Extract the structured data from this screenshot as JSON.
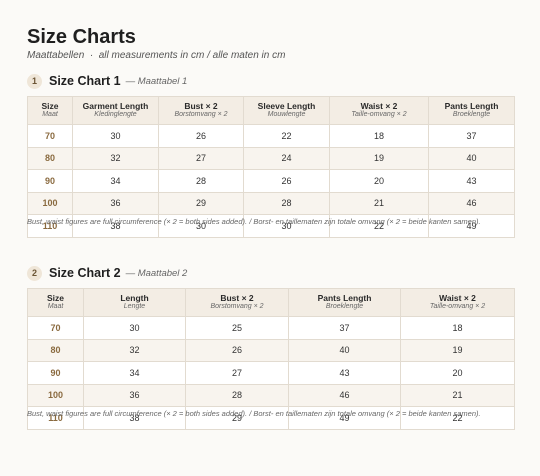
{
  "header": {
    "title": "Size Charts",
    "subtitle": "Maattabellen  ·  all measurements in cm / alle maten in cm"
  },
  "sections": [
    {
      "number": 1,
      "title": "Size Chart 1",
      "subtitle": "— Maattabel 1",
      "table": {
        "columns": [
          {
            "label": "Size",
            "sublabel": "Maat"
          },
          {
            "label": "Garment Length",
            "sublabel": "Kledinglengte"
          },
          {
            "label": "Bust × 2",
            "sublabel": "Borstomvang × 2"
          },
          {
            "label": "Sleeve Length",
            "sublabel": "Mouwlengte"
          },
          {
            "label": "Waist × 2",
            "sublabel": "Taille-omvang × 2"
          },
          {
            "label": "Pants Length",
            "sublabel": "Broeklengte"
          }
        ],
        "rows": [
          [
            70,
            30,
            26,
            22,
            18,
            37
          ],
          [
            80,
            32,
            27,
            24,
            19,
            40
          ],
          [
            90,
            34,
            28,
            26,
            20,
            43
          ],
          [
            100,
            36,
            29,
            28,
            21,
            46
          ],
          [
            110,
            38,
            30,
            30,
            22,
            49
          ]
        ]
      },
      "note": "Bust, waist figures are full circumference (× 2 = both sides added). / Borst- en taillematen zijn totale omvang (× 2 = beide kanten samen)."
    },
    {
      "number": 2,
      "title": "Size Chart 2",
      "subtitle": "— Maattabel 2",
      "table": {
        "columns": [
          {
            "label": "Size",
            "sublabel": "Maat"
          },
          {
            "label": "Length",
            "sublabel": "Lengte"
          },
          {
            "label": "Bust × 2",
            "sublabel": "Borstomvang × 2"
          },
          {
            "label": "Pants Length",
            "sublabel": "Broeklengte"
          },
          {
            "label": "Waist × 2",
            "sublabel": "Taille-omvang × 2"
          }
        ],
        "rows": [
          [
            70,
            30,
            25,
            37,
            18
          ],
          [
            80,
            32,
            26,
            40,
            19
          ],
          [
            90,
            34,
            27,
            43,
            20
          ],
          [
            100,
            36,
            28,
            46,
            21
          ],
          [
            110,
            38,
            29,
            49,
            22
          ]
        ]
      },
      "note": "Bust, waist figures are full circumference (× 2 = both sides added). / Borst- en taillematen zijn totale omvang (× 2 = beide kanten samen)."
    }
  ]
}
